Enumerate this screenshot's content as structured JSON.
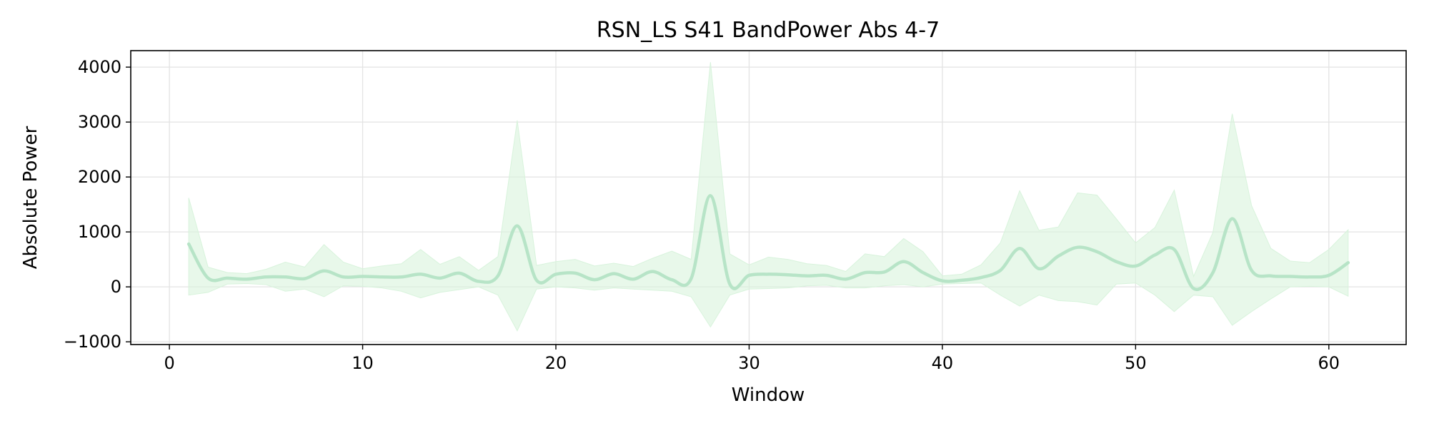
{
  "chart_data": {
    "type": "line",
    "title": "RSN_LS S41 BandPower Abs 4-7",
    "xlabel": "Window",
    "ylabel": "Absolute Power",
    "xlim": [
      -2,
      64
    ],
    "ylim": [
      -1050,
      4300
    ],
    "xticks": [
      0,
      10,
      20,
      30,
      40,
      50,
      60
    ],
    "xtick_labels": [
      "0",
      "10",
      "20",
      "30",
      "40",
      "50",
      "60"
    ],
    "yticks": [
      -1000,
      0,
      1000,
      2000,
      3000,
      4000
    ],
    "ytick_labels": [
      "−1000",
      "0",
      "1000",
      "2000",
      "3000",
      "4000"
    ],
    "grid": true,
    "colors": {
      "line": "#b7e4c7",
      "band": "#d8f3dc"
    },
    "series": [
      {
        "x": [
          1,
          2,
          3,
          4,
          5,
          6,
          7,
          8,
          9,
          10,
          11,
          12,
          13,
          14,
          15,
          16,
          17,
          18,
          19,
          20,
          21,
          22,
          23,
          24,
          25,
          26,
          27,
          28,
          29,
          30,
          31,
          32,
          33,
          34,
          35,
          36,
          37,
          38,
          39,
          40,
          41,
          42,
          43,
          44,
          45,
          46,
          47,
          48,
          49,
          50,
          51,
          52,
          53,
          54,
          55,
          56,
          57,
          58,
          59,
          60,
          61
        ],
        "mean": [
          780,
          160,
          160,
          140,
          180,
          180,
          150,
          290,
          180,
          190,
          180,
          180,
          230,
          160,
          250,
          100,
          200,
          1110,
          120,
          230,
          250,
          130,
          240,
          140,
          280,
          130,
          150,
          1660,
          50,
          210,
          230,
          220,
          200,
          210,
          140,
          260,
          270,
          460,
          260,
          110,
          120,
          170,
          300,
          700,
          330,
          560,
          720,
          640,
          460,
          380,
          580,
          680,
          -30,
          260,
          1240,
          300,
          200,
          190,
          180,
          210,
          440
        ],
        "lower": [
          -150,
          -100,
          50,
          60,
          40,
          -80,
          -40,
          -180,
          20,
          10,
          -20,
          -80,
          -200,
          -100,
          -50,
          0,
          -150,
          -800,
          -40,
          0,
          -20,
          -60,
          -20,
          -40,
          -60,
          -80,
          -180,
          -730,
          -150,
          -40,
          -30,
          -20,
          20,
          30,
          -20,
          -20,
          20,
          40,
          0,
          50,
          60,
          70,
          -150,
          -350,
          -150,
          -250,
          -270,
          -330,
          50,
          70,
          -150,
          -450,
          -150,
          -180,
          -700,
          -450,
          -220,
          0,
          10,
          0,
          -170
        ],
        "upper": [
          1620,
          360,
          260,
          240,
          320,
          450,
          360,
          770,
          450,
          330,
          380,
          420,
          680,
          410,
          550,
          300,
          550,
          3030,
          390,
          460,
          500,
          380,
          430,
          370,
          520,
          650,
          500,
          4090,
          600,
          400,
          540,
          500,
          420,
          390,
          280,
          600,
          550,
          880,
          640,
          200,
          230,
          400,
          800,
          1750,
          1030,
          1090,
          1710,
          1670,
          1240,
          800,
          1080,
          1760,
          190,
          990,
          3150,
          1480,
          700,
          470,
          440,
          680,
          1040
        ]
      }
    ]
  }
}
